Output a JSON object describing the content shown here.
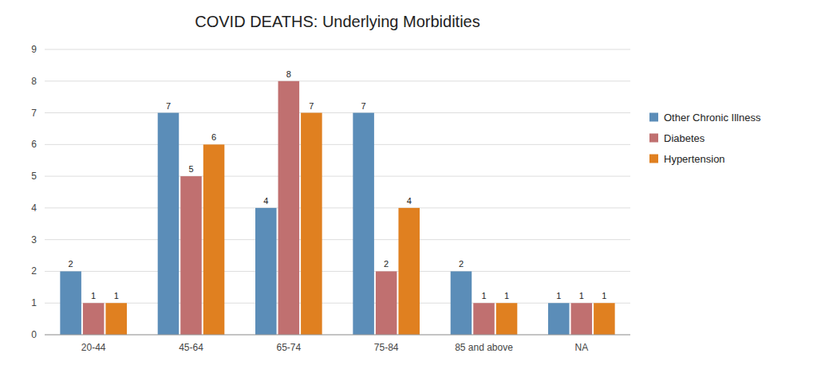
{
  "chart_data": {
    "type": "bar",
    "title": "COVID DEATHS: Underlying Morbidities",
    "categories": [
      "20-44",
      "45-64",
      "65-74",
      "75-84",
      "85 and above",
      "NA"
    ],
    "series": [
      {
        "name": "Other Chronic Illness",
        "color": "#5B8DB8",
        "values": [
          2,
          7,
          4,
          7,
          2,
          1
        ]
      },
      {
        "name": "Diabetes",
        "color": "#C07070",
        "values": [
          1,
          5,
          8,
          2,
          1,
          1
        ]
      },
      {
        "name": "Hypertension",
        "color": "#E08020",
        "values": [
          1,
          6,
          7,
          4,
          1,
          1
        ]
      }
    ],
    "ylim": [
      0,
      9
    ],
    "yticks": [
      0,
      1,
      2,
      3,
      4,
      5,
      6,
      7,
      8,
      9
    ],
    "grid": true,
    "legend": "right",
    "data_labels": true
  }
}
